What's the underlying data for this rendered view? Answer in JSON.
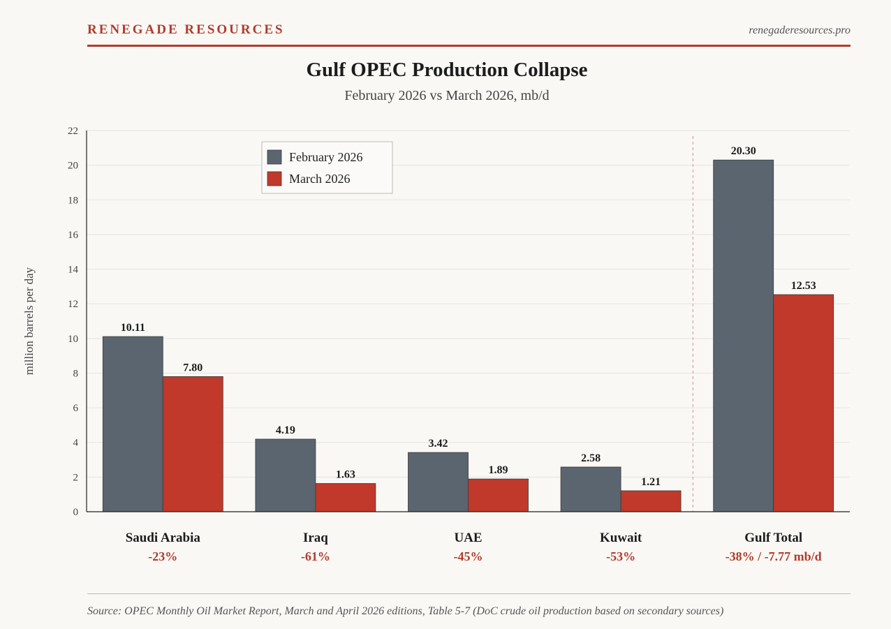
{
  "header": {
    "brand": "RENEGADE RESOURCES",
    "site": "renegaderesources.pro"
  },
  "footer": {
    "source": "Source: OPEC Monthly Oil Market Report, March and April 2026 editions, Table 5-7 (DoC crude oil production based on secondary sources)"
  },
  "colors": {
    "accent": "#b23b2c",
    "feb": "#5a6570",
    "mar": "#c0392b",
    "grid": "#e6e4df",
    "divider": "#d9a0a0"
  },
  "chart_data": {
    "type": "bar",
    "title": "Gulf OPEC Production Collapse",
    "subtitle": "February 2026 vs March 2026, mb/d",
    "ylabel": "million barrels per day",
    "xlabel": "",
    "ylim": [
      0,
      22
    ],
    "yticks": [
      0,
      2,
      4,
      6,
      8,
      10,
      12,
      14,
      16,
      18,
      20,
      22
    ],
    "grid": true,
    "legend_position": "top-left",
    "categories": [
      "Saudi Arabia",
      "Iraq",
      "UAE",
      "Kuwait",
      "Gulf Total"
    ],
    "category_notes": [
      "-23%",
      "-61%",
      "-45%",
      "-53%",
      "-38% / -7.77 mb/d"
    ],
    "series": [
      {
        "name": "February 2026",
        "values": [
          10.11,
          4.19,
          3.42,
          2.58,
          20.3
        ],
        "labels": [
          "10.11",
          "4.19",
          "3.42",
          "2.58",
          "20.30"
        ]
      },
      {
        "name": "March 2026",
        "values": [
          7.8,
          1.63,
          1.89,
          1.21,
          12.53
        ],
        "labels": [
          "7.80",
          "1.63",
          "1.89",
          "1.21",
          "12.53"
        ]
      }
    ]
  }
}
